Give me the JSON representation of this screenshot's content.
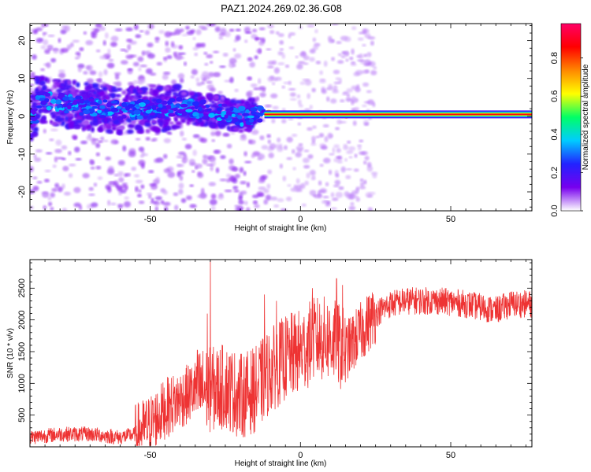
{
  "title": "PAZ1.2024.269.02.36.G08",
  "chart_data": [
    {
      "type": "heatmap",
      "xlabel": "Height of straight line (km)",
      "ylabel": "Frequency (Hz)",
      "xlim": [
        -90,
        77
      ],
      "ylim": [
        -25,
        24.5
      ],
      "xticks": [
        -50,
        0,
        50
      ],
      "yticks": [
        -20,
        -10,
        0,
        10,
        20
      ],
      "colorbar": {
        "label": "Normalized spectral amplitude",
        "range": [
          0,
          0.98
        ],
        "ticks": [
          0.0,
          0.2,
          0.4,
          0.6,
          0.8
        ],
        "tick_labels": [
          "0.0",
          "0.2",
          "0.4",
          "0.6",
          "0.8"
        ],
        "colormap": [
          "#ffffff",
          "#7700ee",
          "#2222ff",
          "#00ccff",
          "#00ff66",
          "#ffff00",
          "#ff8800",
          "#ff0000",
          "#ff0066"
        ]
      },
      "ridge": [
        {
          "x": -88,
          "f": 4.5
        },
        {
          "x": -80,
          "f": 3.5
        },
        {
          "x": -70,
          "f": 2.5
        },
        {
          "x": -60,
          "f": 1.5
        },
        {
          "x": -50,
          "f": 2.0
        },
        {
          "x": -40,
          "f": 2.5
        },
        {
          "x": -30,
          "f": 1.5
        },
        {
          "x": -20,
          "f": 0.0
        },
        {
          "x": -12,
          "f": 0.7
        },
        {
          "x": 0,
          "f": 0.5
        },
        {
          "x": 10,
          "f": 0.5
        },
        {
          "x": 20,
          "f": 0.2
        },
        {
          "x": 40,
          "f": 0.0
        },
        {
          "x": 77,
          "f": 0.0
        }
      ]
    },
    {
      "type": "line",
      "xlabel": "Height of straight line (km)",
      "ylabel": "SNR (10 * v/v)",
      "xlim": [
        -90,
        77
      ],
      "ylim": [
        0,
        2950
      ],
      "xticks": [
        -50,
        0,
        50
      ],
      "yticks": [
        500,
        1000,
        1500,
        2000,
        2500
      ],
      "line_color": "#ee3333",
      "series": [
        {
          "x": [
            -90,
            -80,
            -70,
            -60,
            -55,
            -50,
            -45,
            -40,
            -35,
            -30,
            -25,
            -20,
            -15,
            -10,
            -5,
            0,
            5,
            10,
            15,
            20,
            25,
            30,
            35,
            40,
            45,
            50,
            55,
            60,
            65,
            70,
            77
          ],
          "values": [
            150,
            200,
            200,
            150,
            200,
            350,
            600,
            750,
            900,
            900,
            950,
            800,
            900,
            1200,
            1400,
            1500,
            1700,
            1700,
            1500,
            1800,
            2100,
            2250,
            2300,
            2300,
            2300,
            2280,
            2250,
            2200,
            2150,
            2250,
            2250
          ]
        }
      ],
      "spikes": [
        {
          "x": -30,
          "y": 2950
        },
        {
          "x": -31,
          "y": 2100
        },
        {
          "x": -12,
          "y": 2400
        },
        {
          "x": -8,
          "y": 2300
        },
        {
          "x": 4,
          "y": 2500
        },
        {
          "x": 12,
          "y": 2650
        },
        {
          "x": 14,
          "y": 2550
        }
      ]
    }
  ]
}
